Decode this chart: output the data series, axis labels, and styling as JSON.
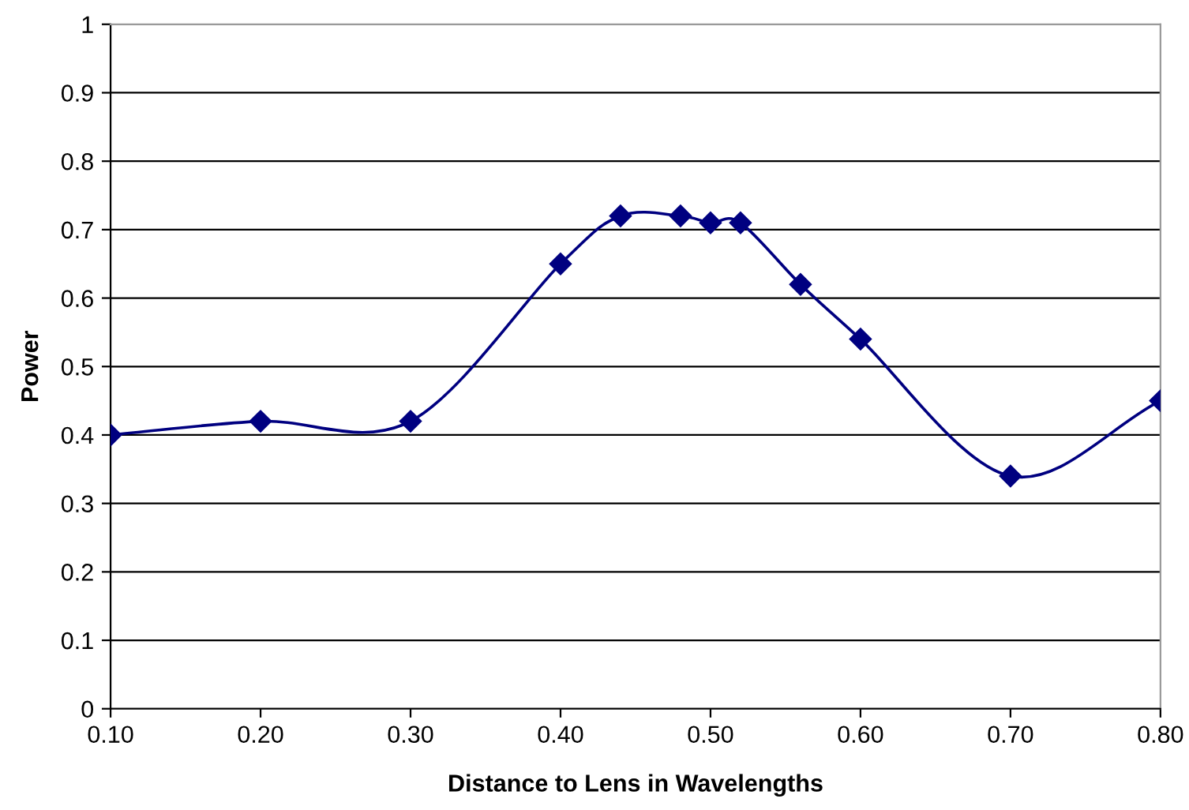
{
  "chart_data": {
    "type": "line",
    "xlabel": "Distance to Lens in Wavelengths",
    "ylabel": "Power",
    "x": [
      0.1,
      0.2,
      0.3,
      0.4,
      0.44,
      0.48,
      0.5,
      0.52,
      0.56,
      0.6,
      0.7,
      0.8
    ],
    "series": [
      {
        "color": "#000080",
        "values": [
          0.4,
          0.42,
          0.42,
          0.65,
          0.72,
          0.72,
          0.71,
          0.71,
          0.62,
          0.54,
          0.34,
          0.45
        ]
      }
    ],
    "xlim": [
      0.1,
      0.8
    ],
    "xticks": [
      {
        "value": 0.1,
        "label": "0.10"
      },
      {
        "value": 0.2,
        "label": "0.20"
      },
      {
        "value": 0.3,
        "label": "0.30"
      },
      {
        "value": 0.4,
        "label": "0.40"
      },
      {
        "value": 0.5,
        "label": "0.50"
      },
      {
        "value": 0.6,
        "label": "0.60"
      },
      {
        "value": 0.7,
        "label": "0.70"
      },
      {
        "value": 0.8,
        "label": "0.80"
      }
    ],
    "ylim": [
      0,
      1
    ],
    "yticks": [
      0,
      0.1,
      0.2,
      0.3,
      0.4,
      0.5,
      0.6,
      0.7,
      0.8,
      0.9,
      1
    ],
    "grid": "y",
    "marker": "diamond",
    "line_style": "solid",
    "legend": false
  }
}
